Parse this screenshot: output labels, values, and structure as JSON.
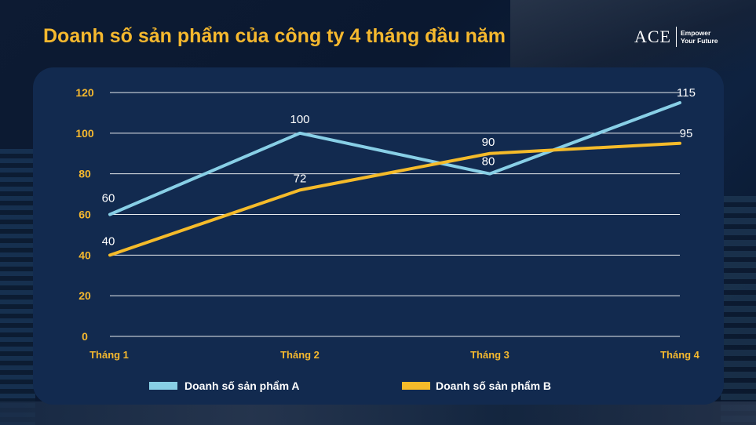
{
  "header": {
    "title": "Doanh số sản phẩm của công ty 4 tháng đầu năm",
    "logo_mark": "ACE",
    "logo_tag_line1": "Empower",
    "logo_tag_line2": "Your Future"
  },
  "colors": {
    "title": "#f5b82e",
    "panel": "#122a4f",
    "series_a": "#88cfe6",
    "series_b": "#f5bb2a",
    "axis_text": "#f5b82e",
    "grid": "#ffffff"
  },
  "chart_data": {
    "type": "line",
    "categories": [
      "Tháng 1",
      "Tháng 2",
      "Tháng 3",
      "Tháng 4"
    ],
    "series": [
      {
        "name": "Doanh số sản phẩm A",
        "values": [
          60,
          100,
          80,
          115
        ]
      },
      {
        "name": "Doanh số sản phẩm B",
        "values": [
          40,
          72,
          90,
          95
        ]
      }
    ],
    "yticks": [
      0,
      20,
      40,
      60,
      80,
      100,
      120
    ],
    "ylim": [
      0,
      120
    ],
    "grid": true,
    "legend": "bottom",
    "data_labels": true
  }
}
